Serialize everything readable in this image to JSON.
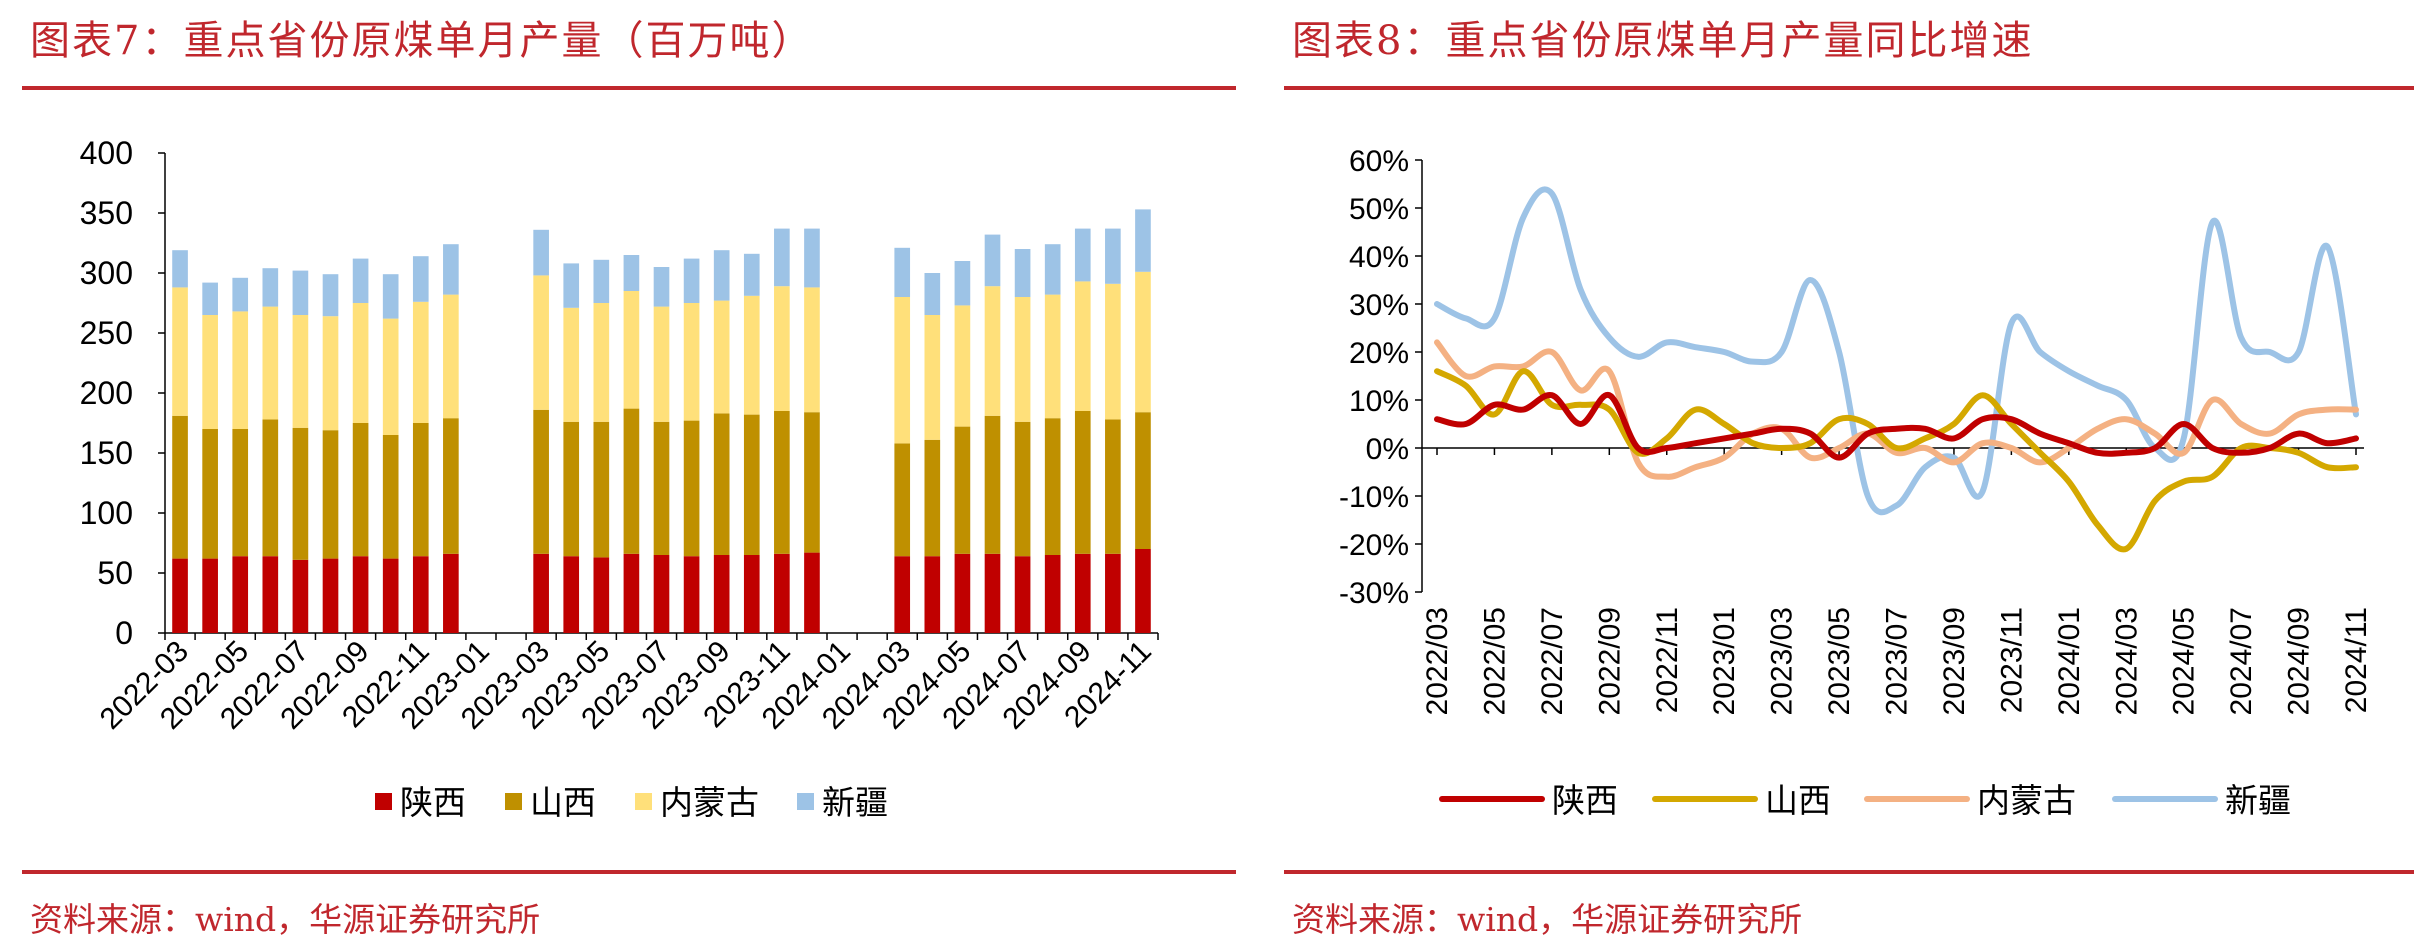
{
  "left": {
    "title": "图表7：重点省份原煤单月产量（百万吨）",
    "source": "资料来源：wind，华源证券研究所"
  },
  "right": {
    "title": "图表8：重点省份原煤单月产量同比增速",
    "source": "资料来源：wind，华源证券研究所"
  },
  "chart_data": [
    {
      "type": "bar",
      "stacked": true,
      "title": "图表7：重点省份原煤单月产量（百万吨）",
      "unit": "百万吨",
      "ylim": [
        0,
        400
      ],
      "yticks": [
        0,
        50,
        100,
        150,
        200,
        250,
        300,
        350,
        400
      ],
      "categories": [
        "2022-03",
        "2022-04",
        "2022-05",
        "2022-06",
        "2022-07",
        "2022-08",
        "2022-09",
        "2022-10",
        "2022-11",
        "2022-12",
        "2023-01",
        "2023-02",
        "2023-03",
        "2023-04",
        "2023-05",
        "2023-06",
        "2023-07",
        "2023-08",
        "2023-09",
        "2023-10",
        "2023-11",
        "2023-12",
        "2024-01",
        "2024-02",
        "2024-03",
        "2024-04",
        "2024-05",
        "2024-06",
        "2024-07",
        "2024-08",
        "2024-09",
        "2024-10",
        "2024-11"
      ],
      "xtick_labels": [
        "2022-03",
        "2022-05",
        "2022-07",
        "2022-09",
        "2022-11",
        "2023-01",
        "2023-03",
        "2023-05",
        "2023-07",
        "2023-09",
        "2023-11",
        "2024-01",
        "2024-03",
        "2024-05",
        "2024-07",
        "2024-09",
        "2024-11"
      ],
      "series": [
        {
          "name": "陕西",
          "color": "#c00000",
          "values": [
            62,
            62,
            64,
            64,
            61,
            62,
            64,
            62,
            64,
            66,
            null,
            null,
            66,
            64,
            63,
            66,
            65,
            64,
            65,
            65,
            66,
            67,
            null,
            null,
            64,
            64,
            66,
            66,
            64,
            65,
            66,
            66,
            70
          ]
        },
        {
          "name": "山西",
          "color": "#bf9000",
          "values": [
            119,
            108,
            106,
            114,
            110,
            107,
            111,
            103,
            111,
            113,
            null,
            null,
            120,
            112,
            113,
            121,
            111,
            113,
            118,
            117,
            119,
            117,
            null,
            null,
            94,
            97,
            106,
            115,
            112,
            114,
            119,
            112,
            114
          ]
        },
        {
          "name": "内蒙古",
          "color": "#ffe07a",
          "values": [
            107,
            95,
            98,
            94,
            94,
            95,
            100,
            97,
            101,
            103,
            null,
            null,
            112,
            95,
            99,
            98,
            96,
            98,
            94,
            99,
            104,
            104,
            null,
            null,
            122,
            104,
            101,
            108,
            104,
            103,
            108,
            113,
            117
          ]
        },
        {
          "name": "新疆",
          "color": "#9dc3e6",
          "values": [
            31,
            27,
            28,
            32,
            37,
            35,
            37,
            37,
            38,
            42,
            null,
            null,
            38,
            37,
            36,
            30,
            33,
            37,
            42,
            35,
            48,
            49,
            null,
            null,
            41,
            35,
            37,
            43,
            40,
            42,
            44,
            46,
            52
          ]
        }
      ]
    },
    {
      "type": "line",
      "title": "图表8：重点省份原煤单月产量同比增速",
      "ylim": [
        -0.3,
        0.6
      ],
      "ytick_labels": [
        "60%",
        "50%",
        "40%",
        "30%",
        "20%",
        "10%",
        "0%",
        "-10%",
        "-20%",
        "-30%"
      ],
      "yticks": [
        0.6,
        0.5,
        0.4,
        0.3,
        0.2,
        0.1,
        0,
        -0.1,
        -0.2,
        -0.3
      ],
      "categories": [
        "2022-03",
        "2022-04",
        "2022-05",
        "2022-06",
        "2022-07",
        "2022-08",
        "2022-09",
        "2022-10",
        "2022-11",
        "2022-12",
        "2023-01",
        "2023-02",
        "2023-03",
        "2023-04",
        "2023-05",
        "2023-06",
        "2023-07",
        "2023-08",
        "2023-09",
        "2023-10",
        "2023-11",
        "2023-12",
        "2024-01",
        "2024-02",
        "2024-03",
        "2024-04",
        "2024-05",
        "2024-06",
        "2024-07",
        "2024-08",
        "2024-09",
        "2024-10",
        "2024-11"
      ],
      "xtick_labels": [
        "2022/03",
        "2022/05",
        "2022/07",
        "2022/09",
        "2022/11",
        "2023/01",
        "2023/03",
        "2023/05",
        "2023/07",
        "2023/09",
        "2023/11",
        "2024/01",
        "2024/03",
        "2024/05",
        "2024/07",
        "2024/09",
        "2024/11"
      ],
      "series": [
        {
          "name": "陕西",
          "color": "#c00000",
          "values": [
            0.06,
            0.05,
            0.09,
            0.08,
            0.11,
            0.05,
            0.11,
            0.0,
            0.0,
            0.01,
            0.02,
            0.03,
            0.04,
            0.03,
            -0.02,
            0.03,
            0.04,
            0.04,
            0.02,
            0.06,
            0.06,
            0.03,
            0.01,
            -0.01,
            -0.01,
            0.0,
            0.05,
            0.0,
            -0.01,
            0.0,
            0.03,
            0.01,
            0.02
          ]
        },
        {
          "name": "山西",
          "color": "#d4a800",
          "values": [
            0.16,
            0.13,
            0.07,
            0.16,
            0.09,
            0.09,
            0.08,
            -0.01,
            0.02,
            0.08,
            0.05,
            0.01,
            0.0,
            0.01,
            0.06,
            0.05,
            0.0,
            0.02,
            0.05,
            0.11,
            0.05,
            -0.01,
            -0.07,
            -0.16,
            -0.21,
            -0.11,
            -0.07,
            -0.06,
            0.0,
            0.0,
            -0.01,
            -0.04,
            -0.04
          ]
        },
        {
          "name": "内蒙古",
          "color": "#f4b183",
          "values": [
            0.22,
            0.15,
            0.17,
            0.17,
            0.2,
            0.12,
            0.16,
            -0.03,
            -0.06,
            -0.04,
            -0.02,
            0.03,
            0.04,
            -0.02,
            0.0,
            0.03,
            -0.01,
            0.0,
            -0.03,
            0.01,
            0.0,
            -0.03,
            0.0,
            0.04,
            0.06,
            0.03,
            -0.01,
            0.1,
            0.05,
            0.03,
            0.07,
            0.08,
            0.08
          ]
        },
        {
          "name": "新疆",
          "color": "#9dc3e6",
          "values": [
            0.3,
            0.27,
            0.27,
            0.48,
            0.53,
            0.33,
            0.23,
            0.19,
            0.22,
            0.21,
            0.2,
            0.18,
            0.2,
            0.35,
            0.2,
            -0.1,
            -0.12,
            -0.04,
            -0.02,
            -0.09,
            0.26,
            0.2,
            0.16,
            0.13,
            0.1,
            0.0,
            0.02,
            0.47,
            0.23,
            0.2,
            0.2,
            0.42,
            0.07
          ]
        }
      ]
    }
  ]
}
